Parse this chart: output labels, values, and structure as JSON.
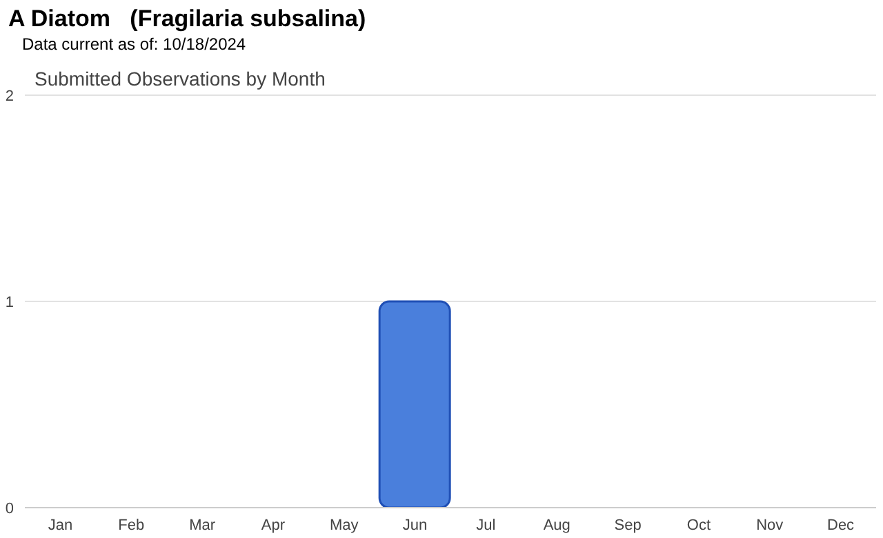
{
  "chart_data": {
    "type": "bar",
    "title": "A Diatom   (Fragilaria subsalina)",
    "subtitle": "Submitted Observations by Month",
    "annotations": [
      "Data current as of: 10/18/2024"
    ],
    "categories": [
      "Jan",
      "Feb",
      "Mar",
      "Apr",
      "May",
      "Jun",
      "Jul",
      "Aug",
      "Sep",
      "Oct",
      "Nov",
      "Dec"
    ],
    "values": [
      0,
      0,
      0,
      0,
      0,
      1,
      0,
      0,
      0,
      0,
      0,
      0
    ],
    "color": "#4a7fdc",
    "ylim": [
      0,
      2
    ],
    "yticks": [
      0,
      1,
      2
    ],
    "grid": "y"
  }
}
